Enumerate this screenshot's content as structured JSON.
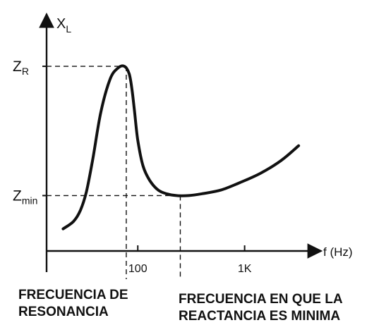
{
  "chart_data": {
    "type": "line",
    "x_scale": "log",
    "ylabel_base": "X",
    "ylabel_sub": "L",
    "xlabel": "f (Hz)",
    "x_ticks": [
      {
        "value": 100,
        "label": "100"
      },
      {
        "value": 1000,
        "label": "1K"
      }
    ],
    "y_marks": [
      {
        "value": 1.0,
        "base": "Z",
        "sub": "R"
      },
      {
        "value": 0.3,
        "base": "Z",
        "sub": "min"
      }
    ],
    "xlim": [
      14,
      4400
    ],
    "ylim": [
      0,
      1.13
    ],
    "series": [
      {
        "x": [
          20,
          25,
          29,
          33,
          38,
          45,
          55,
          65,
          75,
          83,
          88,
          93,
          100,
          112,
          130,
          155,
          185,
          230,
          300,
          400,
          600,
          900,
          1400,
          2200,
          3200
        ],
        "y": [
          0.12,
          0.16,
          0.22,
          0.32,
          0.5,
          0.75,
          0.93,
          0.99,
          1.0,
          0.96,
          0.88,
          0.76,
          0.6,
          0.46,
          0.38,
          0.33,
          0.31,
          0.3,
          0.3,
          0.31,
          0.33,
          0.37,
          0.42,
          0.49,
          0.57
        ]
      }
    ],
    "annotations": [
      {
        "text_lines": [
          "FRECUENCIA DE",
          "RESONANCIA"
        ]
      },
      {
        "text_lines": [
          "FRECUENCIA EN QUE LA",
          "REACTANCIA ES MINIMA"
        ]
      }
    ],
    "resonance_x": 78,
    "min_reactance_x": 250,
    "grid": false,
    "legend": "none"
  }
}
